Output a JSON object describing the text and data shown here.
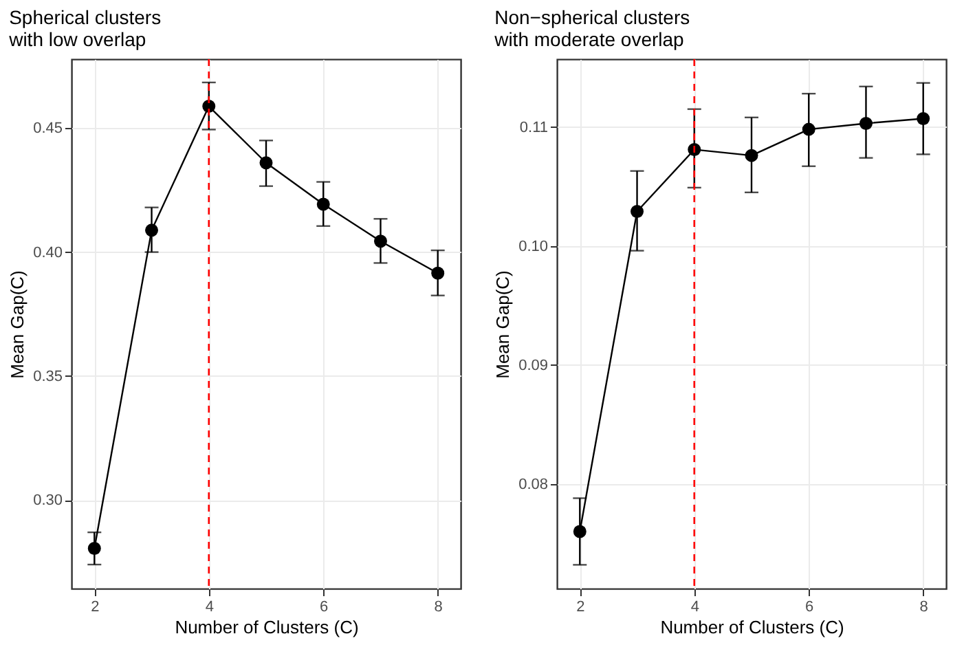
{
  "chart_data": [
    {
      "type": "line",
      "title": "Spherical clusters\n with low overlap",
      "xlabel": "Number of Clusters (C)",
      "ylabel": "Mean Gap(C)",
      "x": [
        2,
        3,
        4,
        5,
        6,
        7,
        8
      ],
      "series": [
        {
          "color": "#000000",
          "values": [
            0.2805,
            0.4088,
            0.4588,
            0.436,
            0.4193,
            0.4044,
            0.3915
          ],
          "errors": [
            [
              0.274,
              0.287
            ],
            [
              0.4,
              0.418
            ],
            [
              0.4494,
              0.4684
            ],
            [
              0.4266,
              0.445
            ],
            [
              0.4105,
              0.4283
            ],
            [
              0.3956,
              0.4134
            ],
            [
              0.3825,
              0.4007
            ]
          ]
        }
      ],
      "xlim": [
        1.6,
        8.4
      ],
      "xticks": [
        2,
        4,
        6,
        8
      ],
      "ylim": [
        0.2643,
        0.4778
      ],
      "yticks": [
        {
          "value": 0.3,
          "label": "0.30"
        },
        0.35,
        {
          "value": 0.4,
          "label": "0.40"
        },
        0.45
      ],
      "ref_lines": [
        {
          "axis": "x",
          "value": 4,
          "color": "#ff0000",
          "line_style": "dashed"
        }
      ],
      "grid": true,
      "marker": "circle",
      "line_style": "solid"
    },
    {
      "type": "line",
      "title": "Non−spherical clusters\n with moderate overlap",
      "xlabel": "Number of Clusters (C)",
      "ylabel": "Mean Gap(C)",
      "x": [
        2,
        3,
        4,
        5,
        6,
        7,
        8
      ],
      "series": [
        {
          "color": "#000000",
          "values": [
            0.076,
            0.1029,
            0.1081,
            0.1076,
            0.1098,
            0.1103,
            0.1107
          ],
          "errors": [
            [
              0.0732,
              0.0788
            ],
            [
              0.0996,
              0.1063
            ],
            [
              0.1049,
              0.1115
            ],
            [
              0.1045,
              0.1108
            ],
            [
              0.1067,
              0.1128
            ],
            [
              0.1074,
              0.1134
            ],
            [
              0.1077,
              0.1137
            ]
          ]
        }
      ],
      "xlim": [
        1.6,
        8.4
      ],
      "xticks": [
        2,
        4,
        6,
        8
      ],
      "ylim": [
        0.0712,
        0.1157
      ],
      "yticks": [
        0.08,
        0.09,
        {
          "value": 0.1,
          "label": "0.10"
        },
        0.11
      ],
      "ref_lines": [
        {
          "axis": "x",
          "value": 4,
          "color": "#ff0000",
          "line_style": "dashed"
        }
      ],
      "grid": true,
      "marker": "circle",
      "line_style": "solid"
    }
  ]
}
